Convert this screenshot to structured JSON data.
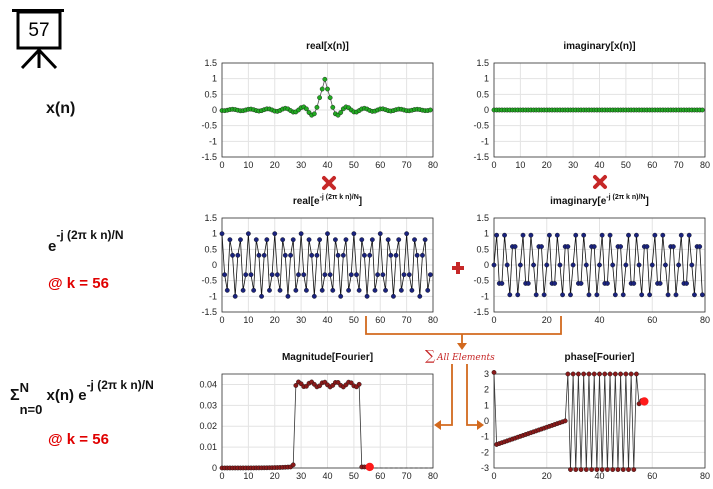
{
  "slide": {
    "number": "57"
  },
  "row_labels": {
    "xn": "x(n)",
    "exp_base": "e",
    "exp_sup": "-j (2π k n)/N",
    "k_label": "@ k = 56",
    "sum_sigma": "Σ",
    "sum_sup": "N",
    "sum_sub": "n=0",
    "sum_expr": " x(n) e",
    "sum_expr_sup": "-j (2π k n)/N",
    "k_label2": "@ k = 56"
  },
  "annotations": {
    "sum_all": "All Elements"
  },
  "colors": {
    "green": "#22aa22",
    "blue": "#1a237e",
    "darkred": "#8b1a1a",
    "bright_red": "#ff1a1a",
    "arrow": "#d2691e",
    "op": "#c62828"
  },
  "chart_data": [
    {
      "id": "real_x",
      "type": "scatter",
      "title": "real[x(n)]",
      "xlim": [
        0,
        80
      ],
      "ylim": [
        -1.5,
        1.5
      ],
      "xticks": [
        0,
        10,
        20,
        30,
        40,
        50,
        60,
        70,
        80
      ],
      "yticks": [
        "1.5",
        "1",
        "0.5",
        "0",
        "-0.5",
        "-1",
        "-1.5"
      ],
      "series": [
        {
          "values": "sinc centered at n=39: y=sin(0.3*pi*(n-39))/(pi*(n-39))*(pi/0.3)/3.3, n=0..79"
        }
      ]
    },
    {
      "id": "imag_x",
      "type": "scatter",
      "title": "imaginary[x(n)]",
      "xlim": [
        0,
        80
      ],
      "ylim": [
        -1.5,
        1.5
      ],
      "xticks": [
        0,
        10,
        20,
        30,
        40,
        50,
        60,
        70,
        80
      ],
      "yticks": [
        "1.5",
        "1",
        "0.5",
        "0",
        "-0.5",
        "-1",
        "-1.5"
      ],
      "series": [
        {
          "values": "0 for n=0..79"
        }
      ]
    },
    {
      "id": "real_e",
      "type": "scatter",
      "title_main": "real[e",
      "title_sup": "-j (2π k n)/N",
      "title_end": "]",
      "xlim": [
        0,
        80
      ],
      "ylim": [
        -1.5,
        1.5
      ],
      "xticks": [
        0,
        10,
        20,
        30,
        40,
        50,
        60,
        70,
        80
      ],
      "yticks": [
        "1.5",
        "1",
        "0.5",
        "0",
        "-0.5",
        "-1",
        "-1.5"
      ],
      "series": [
        {
          "values": "cos(2*pi*56*n/80), n=0..79"
        }
      ]
    },
    {
      "id": "imag_e",
      "type": "scatter",
      "title_main": "imaginary[e",
      "title_sup": "-j (2π k n)/N",
      "title_end": "]",
      "xlim": [
        0,
        80
      ],
      "ylim": [
        -1.5,
        1.5
      ],
      "xticks": [
        0,
        20,
        40,
        60,
        80
      ],
      "yticks": [
        "1.5",
        "1",
        "0.5",
        "0",
        "-0.5",
        "-1",
        "-1.5"
      ],
      "series": [
        {
          "values": "-sin(2*pi*56*n/80), n=0..79"
        }
      ]
    },
    {
      "id": "mag",
      "type": "scatter",
      "title": "Magnitude[Fourier]",
      "xlim": [
        0,
        80
      ],
      "ylim": [
        0,
        0.045
      ],
      "xticks": [
        0,
        10,
        20,
        30,
        40,
        50,
        60,
        70,
        80
      ],
      "yticks": [
        "0.04",
        "0.03",
        "0.02",
        "0.01",
        "0"
      ],
      "series": [
        {
          "values": "~0 for k<28, ~0.04 for k=28..52, ~0 beyond; current k=56"
        }
      ]
    },
    {
      "id": "phase",
      "type": "scatter",
      "title": "phase[Fourier]",
      "xlim": [
        0,
        80
      ],
      "ylim": [
        -3,
        3
      ],
      "xticks": [
        0,
        20,
        40,
        60,
        80
      ],
      "yticks": [
        "3",
        "2",
        "1",
        "0",
        "-1",
        "-2",
        "-3"
      ],
      "series": [
        {
          "values": "linear phase ramp wrapping; current k=56"
        }
      ]
    }
  ]
}
